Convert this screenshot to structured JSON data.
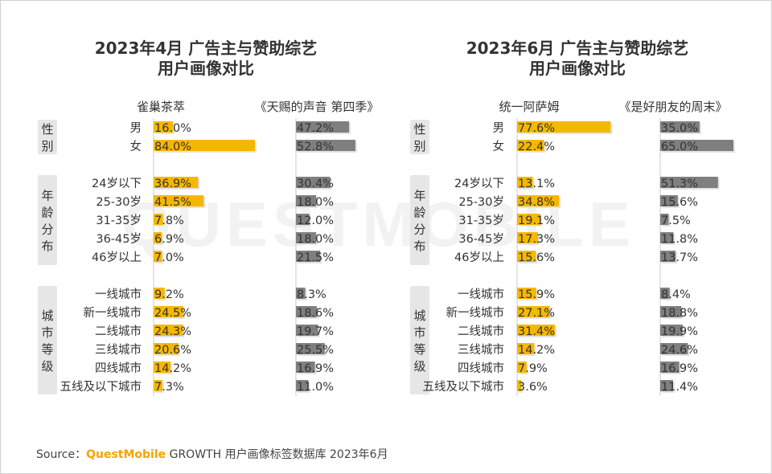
{
  "watermark": "QUESTMOBILE",
  "source": {
    "label": "Source：",
    "brand": "QuestMobile",
    "rest": "GROWTH 用户画像标签数据库 2023年6月"
  },
  "colors": {
    "yellow": "#f5b800",
    "gray": "#7f7f7f",
    "group_box": "#e6e6e6"
  },
  "group_labels": {
    "gender": "性别",
    "age": "年龄分布",
    "city": "城市等级"
  },
  "chart_data": [
    {
      "type": "bar",
      "title_lines": [
        "2023年4月 广告主与赞助综艺",
        "用户画像对比"
      ],
      "groups": [
        {
          "key": "gender",
          "categories": [
            "男",
            "女"
          ]
        },
        {
          "key": "age",
          "categories": [
            "24岁以下",
            "25-30岁",
            "31-35岁",
            "36-45岁",
            "46岁以上"
          ]
        },
        {
          "key": "city",
          "categories": [
            "一线城市",
            "新一线城市",
            "二线城市",
            "三线城市",
            "四线城市",
            "五线及以下城市"
          ]
        }
      ],
      "series": [
        {
          "name": "雀巢茶萃",
          "color": "yellow",
          "values": [
            16.0,
            84.0,
            36.9,
            41.5,
            7.8,
            6.9,
            7.0,
            9.2,
            24.5,
            24.3,
            20.6,
            14.2,
            7.3
          ],
          "labels": [
            "16.0%",
            "84.0%",
            "36.9%",
            "41.5%",
            "7.8%",
            "6.9%",
            "7.0%",
            "9.2%",
            "24.5%",
            "24.3%",
            "20.6%",
            "14.2%",
            "7.3%"
          ]
        },
        {
          "name": "《天赐的声音 第四季》",
          "color": "gray",
          "values": [
            47.2,
            52.8,
            30.4,
            18.0,
            12.0,
            18.0,
            21.5,
            8.3,
            18.6,
            19.7,
            25.5,
            16.9,
            11.0
          ],
          "labels": [
            "47.2%",
            "52.8%",
            "30.4%",
            "18.0%",
            "12.0%",
            "18.0%",
            "21.5%",
            "8.3%",
            "18.6%",
            "19.7%",
            "25.5%",
            "16.9%",
            "11.0%"
          ]
        }
      ]
    },
    {
      "type": "bar",
      "title_lines": [
        "2023年6月 广告主与赞助综艺",
        "用户画像对比"
      ],
      "groups": [
        {
          "key": "gender",
          "categories": [
            "男",
            "女"
          ]
        },
        {
          "key": "age",
          "categories": [
            "24岁以下",
            "25-30岁",
            "31-35岁",
            "36-45岁",
            "46岁以上"
          ]
        },
        {
          "key": "city",
          "categories": [
            "一线城市",
            "新一线城市",
            "二线城市",
            "三线城市",
            "四线城市",
            "五线及以下城市"
          ]
        }
      ],
      "series": [
        {
          "name": "统一阿萨姆",
          "color": "yellow",
          "values": [
            77.6,
            22.4,
            13.1,
            34.8,
            19.1,
            17.3,
            15.6,
            15.9,
            27.1,
            31.4,
            14.2,
            7.9,
            3.6
          ],
          "labels": [
            "77.6%",
            "22.4%",
            "13.1%",
            "34.8%",
            "19.1%",
            "17.3%",
            "15.6%",
            "15.9%",
            "27.1%",
            "31.4%",
            "14.2%",
            "7.9%",
            "3.6%"
          ]
        },
        {
          "name": "《是好朋友的周末》",
          "color": "gray",
          "values": [
            35.0,
            65.0,
            51.3,
            15.6,
            7.5,
            11.8,
            13.7,
            8.4,
            18.8,
            19.9,
            24.6,
            16.9,
            11.4
          ],
          "labels": [
            "35.0%",
            "65.0%",
            "51.3%",
            "15.6%",
            "7.5%",
            "11.8%",
            "13.7%",
            "8.4%",
            "18.8%",
            "19.9%",
            "24.6%",
            "16.9%",
            "11.4%"
          ]
        }
      ]
    }
  ]
}
